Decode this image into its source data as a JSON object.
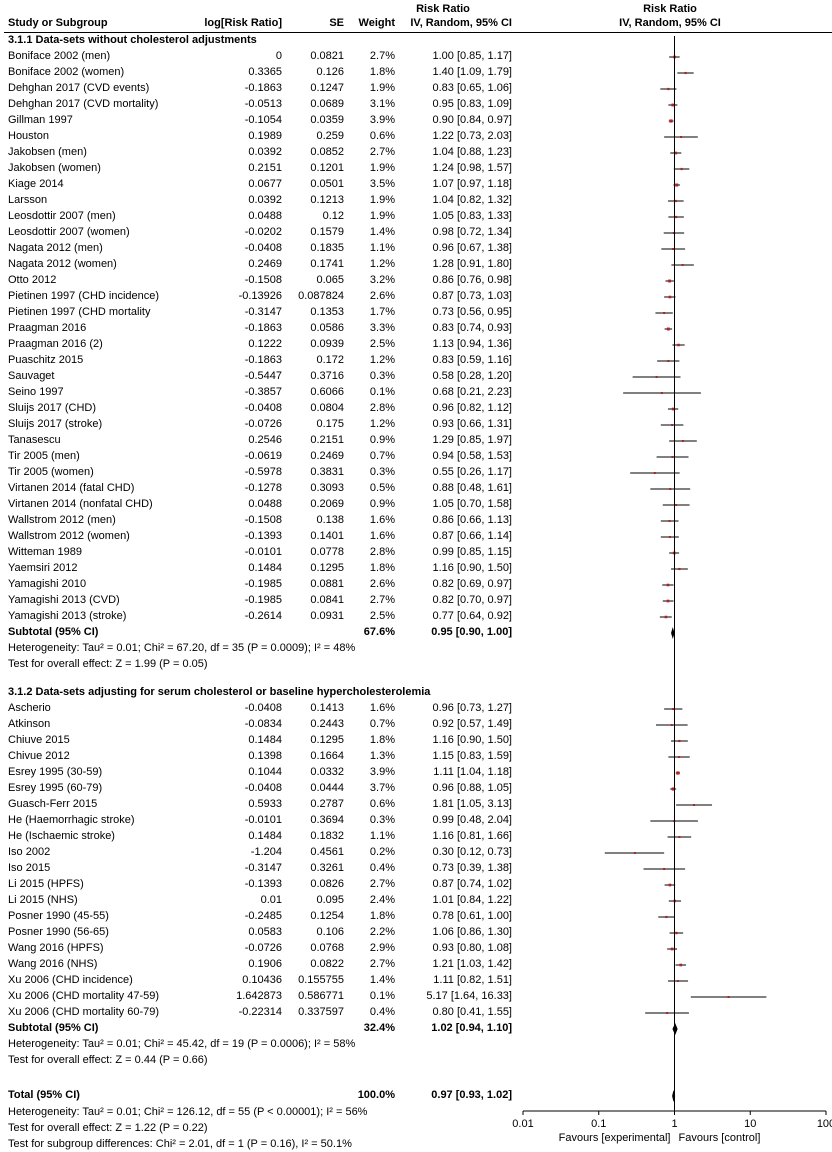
{
  "header": {
    "study": "Study or Subgroup",
    "logrr": "log[Risk Ratio]",
    "se": "SE",
    "weight": "Weight",
    "rr_top": "Risk Ratio",
    "rr_sub": "IV, Random, 95% CI",
    "plot_top": "Risk Ratio",
    "plot_sub": "IV, Random, 95% CI"
  },
  "groups": [
    {
      "title": "3.1.1 Data-sets without cholesterol adjustments",
      "rows": [
        {
          "study": "Boniface 2002 (men)",
          "logrr": "0",
          "se": "0.0821",
          "weight": "2.7%",
          "ci": "1.00 [0.85, 1.17]",
          "rr": 1.0,
          "lo": 0.85,
          "hi": 1.17
        },
        {
          "study": "Boniface 2002 (women)",
          "logrr": "0.3365",
          "se": "0.126",
          "weight": "1.8%",
          "ci": "1.40 [1.09, 1.79]",
          "rr": 1.4,
          "lo": 1.09,
          "hi": 1.79
        },
        {
          "study": "Dehghan 2017 (CVD events)",
          "logrr": "-0.1863",
          "se": "0.1247",
          "weight": "1.9%",
          "ci": "0.83 [0.65, 1.06]",
          "rr": 0.83,
          "lo": 0.65,
          "hi": 1.06
        },
        {
          "study": "Dehghan 2017 (CVD mortality)",
          "logrr": "-0.0513",
          "se": "0.0689",
          "weight": "3.1%",
          "ci": "0.95 [0.83, 1.09]",
          "rr": 0.95,
          "lo": 0.83,
          "hi": 1.09
        },
        {
          "study": "Gillman 1997",
          "logrr": "-0.1054",
          "se": "0.0359",
          "weight": "3.9%",
          "ci": "0.90 [0.84, 0.97]",
          "rr": 0.9,
          "lo": 0.84,
          "hi": 0.97
        },
        {
          "study": "Houston",
          "logrr": "0.1989",
          "se": "0.259",
          "weight": "0.6%",
          "ci": "1.22 [0.73, 2.03]",
          "rr": 1.22,
          "lo": 0.73,
          "hi": 2.03
        },
        {
          "study": "Jakobsen (men)",
          "logrr": "0.0392",
          "se": "0.0852",
          "weight": "2.7%",
          "ci": "1.04 [0.88, 1.23]",
          "rr": 1.04,
          "lo": 0.88,
          "hi": 1.23
        },
        {
          "study": "Jakobsen (women)",
          "logrr": "0.2151",
          "se": "0.1201",
          "weight": "1.9%",
          "ci": "1.24 [0.98, 1.57]",
          "rr": 1.24,
          "lo": 0.98,
          "hi": 1.57
        },
        {
          "study": "Kiage 2014",
          "logrr": "0.0677",
          "se": "0.0501",
          "weight": "3.5%",
          "ci": "1.07 [0.97, 1.18]",
          "rr": 1.07,
          "lo": 0.97,
          "hi": 1.18
        },
        {
          "study": "Larsson",
          "logrr": "0.0392",
          "se": "0.1213",
          "weight": "1.9%",
          "ci": "1.04 [0.82, 1.32]",
          "rr": 1.04,
          "lo": 0.82,
          "hi": 1.32
        },
        {
          "study": "Leosdottir 2007 (men)",
          "logrr": "0.0488",
          "se": "0.12",
          "weight": "1.9%",
          "ci": "1.05 [0.83, 1.33]",
          "rr": 1.05,
          "lo": 0.83,
          "hi": 1.33
        },
        {
          "study": "Leosdottir 2007 (women)",
          "logrr": "-0.0202",
          "se": "0.1579",
          "weight": "1.4%",
          "ci": "0.98 [0.72, 1.34]",
          "rr": 0.98,
          "lo": 0.72,
          "hi": 1.34
        },
        {
          "study": "Nagata 2012 (men)",
          "logrr": "-0.0408",
          "se": "0.1835",
          "weight": "1.1%",
          "ci": "0.96 [0.67, 1.38]",
          "rr": 0.96,
          "lo": 0.67,
          "hi": 1.38
        },
        {
          "study": "Nagata 2012 (women)",
          "logrr": "0.2469",
          "se": "0.1741",
          "weight": "1.2%",
          "ci": "1.28 [0.91, 1.80]",
          "rr": 1.28,
          "lo": 0.91,
          "hi": 1.8
        },
        {
          "study": "Otto 2012",
          "logrr": "-0.1508",
          "se": "0.065",
          "weight": "3.2%",
          "ci": "0.86 [0.76, 0.98]",
          "rr": 0.86,
          "lo": 0.76,
          "hi": 0.98
        },
        {
          "study": "Pietinen 1997 (CHD incidence)",
          "logrr": "-0.13926",
          "se": "0.087824",
          "weight": "2.6%",
          "ci": "0.87 [0.73, 1.03]",
          "rr": 0.87,
          "lo": 0.73,
          "hi": 1.03
        },
        {
          "study": "Pietinen 1997 (CHD mortality",
          "logrr": "-0.3147",
          "se": "0.1353",
          "weight": "1.7%",
          "ci": "0.73 [0.56, 0.95]",
          "rr": 0.73,
          "lo": 0.56,
          "hi": 0.95
        },
        {
          "study": "Praagman 2016",
          "logrr": "-0.1863",
          "se": "0.0586",
          "weight": "3.3%",
          "ci": "0.83 [0.74, 0.93]",
          "rr": 0.83,
          "lo": 0.74,
          "hi": 0.93
        },
        {
          "study": "Praagman 2016 (2)",
          "logrr": "0.1222",
          "se": "0.0939",
          "weight": "2.5%",
          "ci": "1.13 [0.94, 1.36]",
          "rr": 1.13,
          "lo": 0.94,
          "hi": 1.36
        },
        {
          "study": "Puaschitz 2015",
          "logrr": "-0.1863",
          "se": "0.172",
          "weight": "1.2%",
          "ci": "0.83 [0.59, 1.16]",
          "rr": 0.83,
          "lo": 0.59,
          "hi": 1.16
        },
        {
          "study": "Sauvaget",
          "logrr": "-0.5447",
          "se": "0.3716",
          "weight": "0.3%",
          "ci": "0.58 [0.28, 1.20]",
          "rr": 0.58,
          "lo": 0.28,
          "hi": 1.2
        },
        {
          "study": "Seino 1997",
          "logrr": "-0.3857",
          "se": "0.6066",
          "weight": "0.1%",
          "ci": "0.68 [0.21, 2.23]",
          "rr": 0.68,
          "lo": 0.21,
          "hi": 2.23
        },
        {
          "study": "Sluijs 2017 (CHD)",
          "logrr": "-0.0408",
          "se": "0.0804",
          "weight": "2.8%",
          "ci": "0.96 [0.82, 1.12]",
          "rr": 0.96,
          "lo": 0.82,
          "hi": 1.12
        },
        {
          "study": "Sluijs 2017 (stroke)",
          "logrr": "-0.0726",
          "se": "0.175",
          "weight": "1.2%",
          "ci": "0.93 [0.66, 1.31]",
          "rr": 0.93,
          "lo": 0.66,
          "hi": 1.31
        },
        {
          "study": "Tanasescu",
          "logrr": "0.2546",
          "se": "0.2151",
          "weight": "0.9%",
          "ci": "1.29 [0.85, 1.97]",
          "rr": 1.29,
          "lo": 0.85,
          "hi": 1.97
        },
        {
          "study": "Tir 2005 (men)",
          "logrr": "-0.0619",
          "se": "0.2469",
          "weight": "0.7%",
          "ci": "0.94 [0.58, 1.53]",
          "rr": 0.94,
          "lo": 0.58,
          "hi": 1.53
        },
        {
          "study": "Tir 2005 (women)",
          "logrr": "-0.5978",
          "se": "0.3831",
          "weight": "0.3%",
          "ci": "0.55 [0.26, 1.17]",
          "rr": 0.55,
          "lo": 0.26,
          "hi": 1.17
        },
        {
          "study": "Virtanen 2014 (fatal CHD)",
          "logrr": "-0.1278",
          "se": "0.3093",
          "weight": "0.5%",
          "ci": "0.88 [0.48, 1.61]",
          "rr": 0.88,
          "lo": 0.48,
          "hi": 1.61
        },
        {
          "study": "Virtanen 2014 (nonfatal CHD)",
          "logrr": "0.0488",
          "se": "0.2069",
          "weight": "0.9%",
          "ci": "1.05 [0.70, 1.58]",
          "rr": 1.05,
          "lo": 0.7,
          "hi": 1.58
        },
        {
          "study": "Wallstrom  2012 (men)",
          "logrr": "-0.1508",
          "se": "0.138",
          "weight": "1.6%",
          "ci": "0.86 [0.66, 1.13]",
          "rr": 0.86,
          "lo": 0.66,
          "hi": 1.13
        },
        {
          "study": "Wallstrom  2012 (women)",
          "logrr": "-0.1393",
          "se": "0.1401",
          "weight": "1.6%",
          "ci": "0.87 [0.66, 1.14]",
          "rr": 0.87,
          "lo": 0.66,
          "hi": 1.14
        },
        {
          "study": "Witteman 1989",
          "logrr": "-0.0101",
          "se": "0.0778",
          "weight": "2.8%",
          "ci": "0.99 [0.85, 1.15]",
          "rr": 0.99,
          "lo": 0.85,
          "hi": 1.15
        },
        {
          "study": "Yaemsiri 2012",
          "logrr": "0.1484",
          "se": "0.1295",
          "weight": "1.8%",
          "ci": "1.16 [0.90, 1.50]",
          "rr": 1.16,
          "lo": 0.9,
          "hi": 1.5
        },
        {
          "study": "Yamagishi 2010",
          "logrr": "-0.1985",
          "se": "0.0881",
          "weight": "2.6%",
          "ci": "0.82 [0.69, 0.97]",
          "rr": 0.82,
          "lo": 0.69,
          "hi": 0.97
        },
        {
          "study": "Yamagishi 2013 (CVD)",
          "logrr": "-0.1985",
          "se": "0.0841",
          "weight": "2.7%",
          "ci": "0.82 [0.70, 0.97]",
          "rr": 0.82,
          "lo": 0.7,
          "hi": 0.97
        },
        {
          "study": "Yamagishi 2013 (stroke)",
          "logrr": "-0.2614",
          "se": "0.0931",
          "weight": "2.5%",
          "ci": "0.77 [0.64, 0.92]",
          "rr": 0.77,
          "lo": 0.64,
          "hi": 0.92
        }
      ],
      "subtotal": {
        "label": "Subtotal (95% CI)",
        "weight": "67.6%",
        "ci": "0.95 [0.90, 1.00]",
        "rr": 0.95,
        "lo": 0.9,
        "hi": 1.0
      },
      "heterogeneity": "Heterogeneity: Tau² = 0.01; Chi² = 67.20, df = 35 (P = 0.0009); I² = 48%",
      "overall": "Test for overall effect: Z = 1.99 (P = 0.05)"
    },
    {
      "title": "3.1.2 Data-sets adjusting for serum cholesterol or baseline hypercholesterolemia",
      "rows": [
        {
          "study": "Ascherio",
          "logrr": "-0.0408",
          "se": "0.1413",
          "weight": "1.6%",
          "ci": "0.96 [0.73, 1.27]",
          "rr": 0.96,
          "lo": 0.73,
          "hi": 1.27
        },
        {
          "study": "Atkinson",
          "logrr": "-0.0834",
          "se": "0.2443",
          "weight": "0.7%",
          "ci": "0.92 [0.57, 1.49]",
          "rr": 0.92,
          "lo": 0.57,
          "hi": 1.49
        },
        {
          "study": "Chiuve 2015",
          "logrr": "0.1484",
          "se": "0.1295",
          "weight": "1.8%",
          "ci": "1.16 [0.90, 1.50]",
          "rr": 1.16,
          "lo": 0.9,
          "hi": 1.5
        },
        {
          "study": "Chivue 2012",
          "logrr": "0.1398",
          "se": "0.1664",
          "weight": "1.3%",
          "ci": "1.15 [0.83, 1.59]",
          "rr": 1.15,
          "lo": 0.83,
          "hi": 1.59
        },
        {
          "study": "Esrey 1995 (30-59)",
          "logrr": "0.1044",
          "se": "0.0332",
          "weight": "3.9%",
          "ci": "1.11 [1.04, 1.18]",
          "rr": 1.11,
          "lo": 1.04,
          "hi": 1.18
        },
        {
          "study": "Esrey 1995 (60-79)",
          "logrr": "-0.0408",
          "se": "0.0444",
          "weight": "3.7%",
          "ci": "0.96 [0.88, 1.05]",
          "rr": 0.96,
          "lo": 0.88,
          "hi": 1.05
        },
        {
          "study": "Guasch-Ferr 2015",
          "logrr": "0.5933",
          "se": "0.2787",
          "weight": "0.6%",
          "ci": "1.81 [1.05, 3.13]",
          "rr": 1.81,
          "lo": 1.05,
          "hi": 3.13
        },
        {
          "study": "He (Haemorrhagic stroke)",
          "logrr": "-0.0101",
          "se": "0.3694",
          "weight": "0.3%",
          "ci": "0.99 [0.48, 2.04]",
          "rr": 0.99,
          "lo": 0.48,
          "hi": 2.04
        },
        {
          "study": "He (Ischaemic stroke)",
          "logrr": "0.1484",
          "se": "0.1832",
          "weight": "1.1%",
          "ci": "1.16 [0.81, 1.66]",
          "rr": 1.16,
          "lo": 0.81,
          "hi": 1.66
        },
        {
          "study": "Iso 2002",
          "logrr": "-1.204",
          "se": "0.4561",
          "weight": "0.2%",
          "ci": "0.30 [0.12, 0.73]",
          "rr": 0.3,
          "lo": 0.12,
          "hi": 0.73
        },
        {
          "study": "Iso 2015",
          "logrr": "-0.3147",
          "se": "0.3261",
          "weight": "0.4%",
          "ci": "0.73 [0.39, 1.38]",
          "rr": 0.73,
          "lo": 0.39,
          "hi": 1.38
        },
        {
          "study": "Li 2015 (HPFS)",
          "logrr": "-0.1393",
          "se": "0.0826",
          "weight": "2.7%",
          "ci": "0.87 [0.74, 1.02]",
          "rr": 0.87,
          "lo": 0.74,
          "hi": 1.02
        },
        {
          "study": "Li 2015 (NHS)",
          "logrr": "0.01",
          "se": "0.095",
          "weight": "2.4%",
          "ci": "1.01 [0.84, 1.22]",
          "rr": 1.01,
          "lo": 0.84,
          "hi": 1.22
        },
        {
          "study": "Posner 1990 (45-55)",
          "logrr": "-0.2485",
          "se": "0.1254",
          "weight": "1.8%",
          "ci": "0.78 [0.61, 1.00]",
          "rr": 0.78,
          "lo": 0.61,
          "hi": 1.0
        },
        {
          "study": "Posner 1990 (56-65)",
          "logrr": "0.0583",
          "se": "0.106",
          "weight": "2.2%",
          "ci": "1.06 [0.86, 1.30]",
          "rr": 1.06,
          "lo": 0.86,
          "hi": 1.3
        },
        {
          "study": "Wang 2016 (HPFS)",
          "logrr": "-0.0726",
          "se": "0.0768",
          "weight": "2.9%",
          "ci": "0.93 [0.80, 1.08]",
          "rr": 0.93,
          "lo": 0.8,
          "hi": 1.08
        },
        {
          "study": "Wang 2016 (NHS)",
          "logrr": "0.1906",
          "se": "0.0822",
          "weight": "2.7%",
          "ci": "1.21 [1.03, 1.42]",
          "rr": 1.21,
          "lo": 1.03,
          "hi": 1.42
        },
        {
          "study": "Xu 2006 (CHD incidence)",
          "logrr": "0.10436",
          "se": "0.155755",
          "weight": "1.4%",
          "ci": "1.11 [0.82, 1.51]",
          "rr": 1.11,
          "lo": 0.82,
          "hi": 1.51
        },
        {
          "study": "Xu 2006 (CHD mortality 47-59)",
          "logrr": "1.642873",
          "se": "0.586771",
          "weight": "0.1%",
          "ci": "5.17 [1.64, 16.33]",
          "rr": 5.17,
          "lo": 1.64,
          "hi": 16.33
        },
        {
          "study": "Xu 2006 (CHD mortality 60-79)",
          "logrr": "-0.22314",
          "se": "0.337597",
          "weight": "0.4%",
          "ci": "0.80 [0.41, 1.55]",
          "rr": 0.8,
          "lo": 0.41,
          "hi": 1.55
        }
      ],
      "subtotal": {
        "label": "Subtotal (95% CI)",
        "weight": "32.4%",
        "ci": "1.02 [0.94, 1.10]",
        "rr": 1.02,
        "lo": 0.94,
        "hi": 1.1
      },
      "heterogeneity": "Heterogeneity: Tau² = 0.01; Chi² = 45.42, df = 19 (P = 0.0006); I² = 58%",
      "overall": "Test for overall effect: Z = 0.44 (P = 0.66)"
    }
  ],
  "total": {
    "label": "Total (95% CI)",
    "weight": "100.0%",
    "ci": "0.97 [0.93, 1.02]",
    "rr": 0.97,
    "lo": 0.93,
    "hi": 1.02
  },
  "footer": {
    "heterogeneity": "Heterogeneity: Tau² = 0.01; Chi² = 126.12, df = 55 (P < 0.00001); I² = 56%",
    "overall": "Test for overall effect: Z = 1.22 (P = 0.22)",
    "subgroup": "Test for subgroup differences: Chi² = 2.01, df = 1 (P = 0.16), I² = 50.1%"
  },
  "axis": {
    "ticks": [
      0.01,
      0.1,
      1,
      10,
      100
    ],
    "tick_labels": [
      "0.01",
      "0.1",
      "1",
      "10",
      "100"
    ],
    "favours_left": "Favours [experimental]",
    "favours_right": "Favours [control]",
    "scale": "log"
  },
  "colors": {
    "point": "#b22222",
    "line": "#000000",
    "diamond": "#000000"
  },
  "chart_data": {
    "type": "forest",
    "scale": "log",
    "xlim": [
      0.01,
      100
    ],
    "reference_line": 1,
    "effect_measure": "Risk Ratio"
  }
}
